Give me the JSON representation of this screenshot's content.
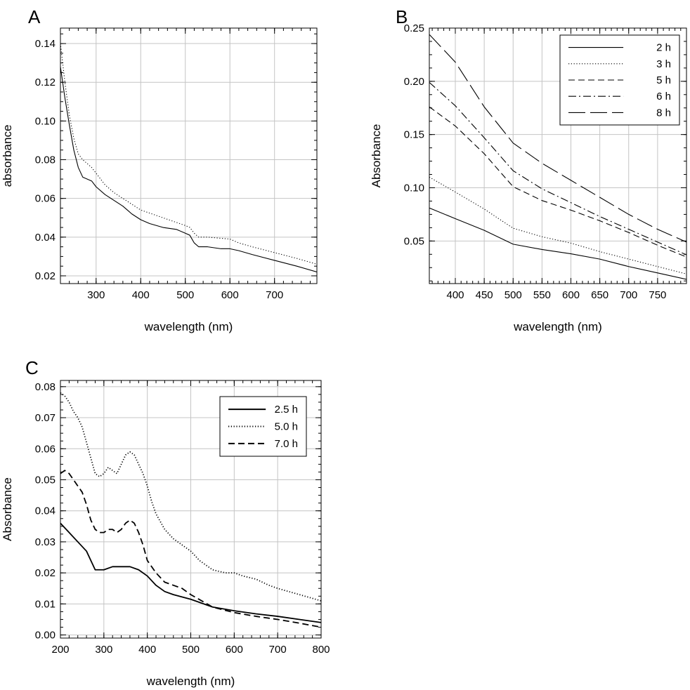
{
  "figure": {
    "panels": [
      "A",
      "B",
      "C"
    ]
  },
  "chart_data": [
    {
      "id": "A",
      "panel_label": "A",
      "type": "line",
      "title": "",
      "xlabel": "wavelength (nm)",
      "ylabel": "absorbance",
      "xlim": [
        220,
        795
      ],
      "ylim": [
        0.016,
        0.148
      ],
      "xticks": [
        300,
        400,
        500,
        600,
        700
      ],
      "xtick_labels": [
        "300",
        "400",
        "500",
        "600",
        "700"
      ],
      "yticks": [
        0.02,
        0.04,
        0.06,
        0.08,
        0.1,
        0.12,
        0.14
      ],
      "ytick_labels": [
        "0.02",
        "0.04",
        "0.06",
        "0.08",
        "0.10",
        "0.12",
        "0.14"
      ],
      "grid": true,
      "legend": null,
      "series": [
        {
          "name": "solid",
          "style": "solid",
          "x": [
            220,
            230,
            240,
            250,
            260,
            270,
            280,
            290,
            300,
            320,
            340,
            360,
            370,
            380,
            400,
            420,
            450,
            480,
            500,
            510,
            520,
            530,
            550,
            580,
            600,
            620,
            650,
            700,
            750,
            795
          ],
          "y": [
            0.128,
            0.112,
            0.098,
            0.085,
            0.076,
            0.071,
            0.07,
            0.069,
            0.066,
            0.062,
            0.059,
            0.056,
            0.054,
            0.052,
            0.049,
            0.047,
            0.045,
            0.044,
            0.042,
            0.041,
            0.037,
            0.035,
            0.035,
            0.034,
            0.034,
            0.033,
            0.031,
            0.028,
            0.025,
            0.022
          ]
        },
        {
          "name": "dotted",
          "style": "dotted",
          "x": [
            220,
            230,
            240,
            250,
            260,
            270,
            280,
            290,
            300,
            320,
            340,
            360,
            380,
            400,
            450,
            500,
            510,
            520,
            530,
            550,
            600,
            620,
            650,
            700,
            750,
            795
          ],
          "y": [
            0.14,
            0.12,
            0.103,
            0.091,
            0.083,
            0.08,
            0.078,
            0.076,
            0.073,
            0.067,
            0.063,
            0.06,
            0.057,
            0.054,
            0.05,
            0.046,
            0.045,
            0.042,
            0.04,
            0.04,
            0.039,
            0.037,
            0.035,
            0.032,
            0.029,
            0.026
          ]
        }
      ]
    },
    {
      "id": "B",
      "panel_label": "B",
      "type": "line",
      "title": "",
      "xlabel": "wavelength (nm)",
      "ylabel": "Absorbance",
      "xlim": [
        355,
        800
      ],
      "ylim": [
        0.01,
        0.25
      ],
      "xticks": [
        400,
        450,
        500,
        550,
        600,
        650,
        700,
        750
      ],
      "xtick_labels": [
        "400",
        "450",
        "500",
        "550",
        "600",
        "650",
        "700",
        "750"
      ],
      "yticks": [
        0.05,
        0.1,
        0.15,
        0.2,
        0.25
      ],
      "ytick_labels": [
        "0.05",
        "0.10",
        "0.15",
        "0.20",
        "0.25"
      ],
      "grid": true,
      "legend": {
        "position": "top-right",
        "entries": [
          "2 h",
          "3 h",
          "5 h",
          "6 h",
          "8 h"
        ]
      },
      "series": [
        {
          "name": "2 h",
          "style": "solid",
          "x": [
            355,
            400,
            450,
            500,
            550,
            600,
            650,
            700,
            750,
            800
          ],
          "y": [
            0.081,
            0.071,
            0.06,
            0.047,
            0.042,
            0.038,
            0.033,
            0.026,
            0.02,
            0.014
          ]
        },
        {
          "name": "3 h",
          "style": "dotted",
          "x": [
            355,
            400,
            450,
            500,
            550,
            600,
            650,
            700,
            750,
            800
          ],
          "y": [
            0.11,
            0.096,
            0.08,
            0.062,
            0.054,
            0.048,
            0.04,
            0.033,
            0.026,
            0.019
          ]
        },
        {
          "name": "5 h",
          "style": "dashed",
          "x": [
            355,
            400,
            450,
            500,
            550,
            600,
            650,
            700,
            750,
            800
          ],
          "y": [
            0.176,
            0.158,
            0.132,
            0.101,
            0.088,
            0.079,
            0.069,
            0.058,
            0.046,
            0.035
          ]
        },
        {
          "name": "6 h",
          "style": "dashdot",
          "x": [
            355,
            400,
            450,
            500,
            550,
            600,
            650,
            700,
            750,
            800
          ],
          "y": [
            0.199,
            0.177,
            0.147,
            0.116,
            0.099,
            0.086,
            0.073,
            0.061,
            0.049,
            0.037
          ]
        },
        {
          "name": "8 h",
          "style": "longdash",
          "x": [
            355,
            400,
            450,
            500,
            550,
            600,
            650,
            700,
            750,
            800
          ],
          "y": [
            0.244,
            0.218,
            0.176,
            0.142,
            0.123,
            0.107,
            0.091,
            0.075,
            0.061,
            0.049
          ]
        }
      ]
    },
    {
      "id": "C",
      "panel_label": "C",
      "type": "line",
      "title": "",
      "xlabel": "wavelength (nm)",
      "ylabel": "Absorbance",
      "xlim": [
        200,
        800
      ],
      "ylim": [
        -0.001,
        0.082
      ],
      "xticks": [
        200,
        300,
        400,
        500,
        600,
        700,
        800
      ],
      "xtick_labels": [
        "200",
        "300",
        "400",
        "500",
        "600",
        "700",
        "800"
      ],
      "yticks": [
        0.0,
        0.01,
        0.02,
        0.03,
        0.04,
        0.05,
        0.06,
        0.07,
        0.08
      ],
      "ytick_labels": [
        "0.00",
        "0.01",
        "0.02",
        "0.03",
        "0.04",
        "0.05",
        "0.06",
        "0.07",
        "0.08"
      ],
      "grid": true,
      "legend": {
        "position": "top-right",
        "entries": [
          "2.5 h",
          "5.0 h",
          "7.0 h"
        ]
      },
      "series": [
        {
          "name": "2.5 h",
          "style": "solid",
          "x": [
            200,
            220,
            240,
            260,
            270,
            280,
            290,
            300,
            320,
            340,
            360,
            380,
            400,
            420,
            440,
            460,
            500,
            550,
            600,
            650,
            700,
            750,
            800
          ],
          "y": [
            0.036,
            0.033,
            0.03,
            0.027,
            0.024,
            0.021,
            0.021,
            0.021,
            0.022,
            0.022,
            0.022,
            0.021,
            0.019,
            0.016,
            0.014,
            0.013,
            0.0115,
            0.009,
            0.0078,
            0.0068,
            0.006,
            0.005,
            0.004
          ]
        },
        {
          "name": "5.0 h",
          "style": "dotted",
          "x": [
            200,
            210,
            220,
            230,
            240,
            250,
            260,
            270,
            280,
            290,
            300,
            310,
            320,
            330,
            340,
            350,
            360,
            370,
            380,
            390,
            400,
            410,
            420,
            440,
            460,
            480,
            500,
            520,
            550,
            580,
            600,
            620,
            650,
            680,
            700,
            750,
            800
          ],
          "y": [
            0.078,
            0.077,
            0.075,
            0.072,
            0.07,
            0.067,
            0.062,
            0.057,
            0.052,
            0.051,
            0.052,
            0.054,
            0.053,
            0.052,
            0.055,
            0.058,
            0.059,
            0.058,
            0.055,
            0.052,
            0.048,
            0.043,
            0.039,
            0.034,
            0.031,
            0.029,
            0.027,
            0.024,
            0.021,
            0.02,
            0.02,
            0.019,
            0.018,
            0.016,
            0.015,
            0.013,
            0.011
          ]
        },
        {
          "name": "7.0 h",
          "style": "dashed",
          "x": [
            200,
            210,
            220,
            230,
            240,
            250,
            260,
            270,
            280,
            290,
            300,
            310,
            320,
            330,
            340,
            350,
            360,
            370,
            380,
            390,
            400,
            420,
            440,
            460,
            480,
            500,
            550,
            600,
            650,
            700,
            750,
            800
          ],
          "y": [
            0.052,
            0.053,
            0.052,
            0.05,
            0.048,
            0.046,
            0.042,
            0.037,
            0.034,
            0.033,
            0.033,
            0.034,
            0.034,
            0.033,
            0.034,
            0.036,
            0.037,
            0.036,
            0.033,
            0.029,
            0.024,
            0.02,
            0.017,
            0.016,
            0.015,
            0.013,
            0.009,
            0.0072,
            0.006,
            0.005,
            0.0038,
            0.0025
          ]
        }
      ]
    }
  ]
}
